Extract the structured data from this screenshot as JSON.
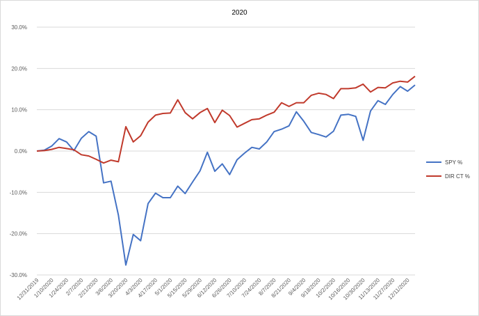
{
  "chart_data": {
    "type": "line",
    "title": "2020",
    "xlabel": "",
    "ylabel": "",
    "ylim": [
      -0.3,
      0.3
    ],
    "yticks": [
      "-30.0%",
      "-20.0%",
      "-10.0%",
      "0.0%",
      "10.0%",
      "20.0%",
      "30.0%"
    ],
    "x_tick_labels": [
      "12/31/2019",
      "1/10/2020",
      "1/24/2020",
      "2/7/2020",
      "2/21/2020",
      "3/6/2020",
      "3/20/2020",
      "4/3/2020",
      "4/17/2020",
      "5/1/2020",
      "5/15/2020",
      "5/29/2020",
      "6/12/2020",
      "6/26/2020",
      "7/10/2020",
      "7/24/2020",
      "8/7/2020",
      "8/21/2020",
      "9/4/2020",
      "9/18/2020",
      "10/2/2020",
      "10/16/2020",
      "10/30/2020",
      "11/13/2020",
      "11/27/2020",
      "12/11/2020"
    ],
    "grid": "horizontal",
    "legend_position": "right",
    "series": [
      {
        "name": "SPY %",
        "color": "#4472c4",
        "values": [
          0.0,
          0.002,
          0.012,
          0.03,
          0.022,
          0.001,
          0.031,
          0.047,
          0.036,
          -0.077,
          -0.073,
          -0.155,
          -0.276,
          -0.202,
          -0.217,
          -0.127,
          -0.102,
          -0.113,
          -0.113,
          -0.085,
          -0.103,
          -0.075,
          -0.048,
          -0.003,
          -0.049,
          -0.031,
          -0.057,
          -0.021,
          -0.005,
          0.009,
          0.005,
          0.022,
          0.047,
          0.053,
          0.061,
          0.095,
          0.072,
          0.045,
          0.04,
          0.034,
          0.048,
          0.087,
          0.089,
          0.084,
          0.026,
          0.097,
          0.122,
          0.113,
          0.137,
          0.156,
          0.145,
          0.16
        ]
      },
      {
        "name": "DIR CT %",
        "color": "#c0392b",
        "values": [
          0.0,
          0.001,
          0.004,
          0.009,
          0.006,
          0.003,
          -0.009,
          -0.012,
          -0.02,
          -0.029,
          -0.022,
          -0.026,
          0.059,
          0.022,
          0.037,
          0.07,
          0.087,
          0.091,
          0.092,
          0.124,
          0.093,
          0.078,
          0.093,
          0.103,
          0.069,
          0.099,
          0.086,
          0.058,
          0.067,
          0.076,
          0.078,
          0.087,
          0.094,
          0.117,
          0.108,
          0.117,
          0.117,
          0.135,
          0.14,
          0.137,
          0.127,
          0.151,
          0.151,
          0.153,
          0.162,
          0.143,
          0.154,
          0.153,
          0.165,
          0.169,
          0.167,
          0.181
        ]
      }
    ]
  }
}
